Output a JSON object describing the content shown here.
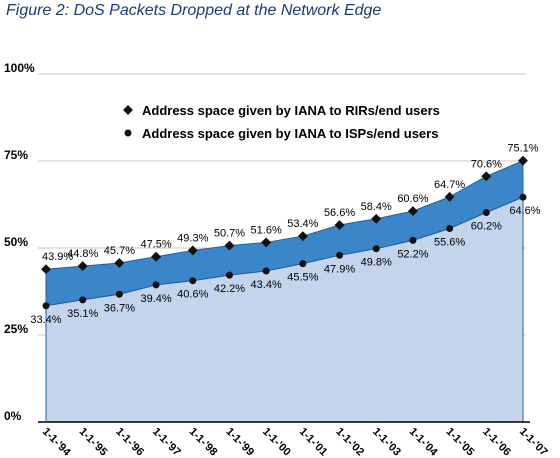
{
  "chart_data": {
    "type": "area",
    "title": "Figure 2: DoS Packets Dropped at the Network Edge",
    "xlabel": "",
    "ylabel": "",
    "x": [
      "1-1-'94",
      "1-1-'95",
      "1-1-'96",
      "1-1-'97",
      "1-1-'98",
      "1-1-'99",
      "1-1-'00",
      "1-1-'01",
      "1-1-'02",
      "1-1-'03",
      "1-1-'04",
      "1-1-'05",
      "1-1-'06",
      "1-1-'07"
    ],
    "ylim": [
      0,
      100
    ],
    "yticks": [
      "0%",
      "25%",
      "50%",
      "75%",
      "100%"
    ],
    "grid": true,
    "legend_position": "top",
    "series": [
      {
        "name": "Address space given by IANA to RIRs/end users",
        "marker": "diamond",
        "color": "#3b86c8",
        "values": [
          43.9,
          44.8,
          45.7,
          47.5,
          49.3,
          50.7,
          51.6,
          53.4,
          56.6,
          58.4,
          60.6,
          64.7,
          70.6,
          75.1
        ],
        "labels": [
          "43.9%",
          "44.8%",
          "45.7%",
          "47.5%",
          "49.3%",
          "50.7%",
          "51.6%",
          "53.4%",
          "56.6%",
          "58.4%",
          "60.6%",
          "64.7%",
          "70.6%",
          "75.1%"
        ]
      },
      {
        "name": "Address space given by IANA to ISPs/end users",
        "marker": "circle",
        "color": "#c3d4ec",
        "values": [
          33.4,
          35.1,
          36.7,
          39.4,
          40.6,
          42.2,
          43.4,
          45.5,
          47.9,
          49.8,
          52.2,
          55.6,
          60.2,
          64.6
        ],
        "labels": [
          "33.4%",
          "35.1%",
          "36.7%",
          "39.4%",
          "40.6%",
          "42.2%",
          "43.4%",
          "45.5%",
          "47.9%",
          "49.8%",
          "52.2%",
          "55.6%",
          "60.2%",
          "64.6%"
        ]
      }
    ]
  }
}
